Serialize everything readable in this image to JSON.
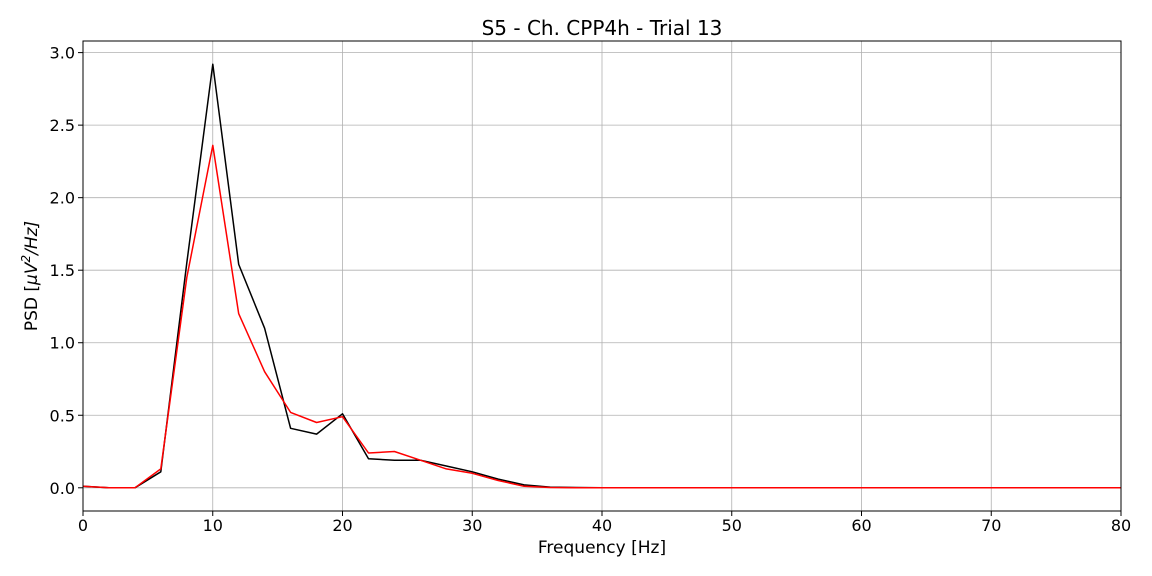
{
  "chart_data": {
    "type": "line",
    "title": "S5 - Ch. CPP4h - Trial 13",
    "xlabel": "Frequency [Hz]",
    "ylabel_prefix": "PSD [",
    "ylabel_mu": "μV",
    "ylabel_exp": "2",
    "ylabel_suffix": "/Hz]",
    "xlim": [
      0,
      80
    ],
    "ylim": [
      -0.16,
      3.08
    ],
    "xticks": [
      0,
      10,
      20,
      30,
      40,
      50,
      60,
      70,
      80
    ],
    "xtick_labels": [
      "0",
      "10",
      "20",
      "30",
      "40",
      "50",
      "60",
      "70",
      "80"
    ],
    "yticks": [
      0.0,
      0.5,
      1.0,
      1.5,
      2.0,
      2.5,
      3.0
    ],
    "ytick_labels": [
      "0.0",
      "0.5",
      "1.0",
      "1.5",
      "2.0",
      "2.5",
      "3.0"
    ],
    "grid": true,
    "x": [
      0,
      2,
      4,
      6,
      8,
      10,
      12,
      14,
      16,
      18,
      20,
      22,
      24,
      26,
      28,
      30,
      32,
      34,
      36,
      38,
      40,
      50,
      60,
      70,
      80
    ],
    "series": [
      {
        "color": "#000000",
        "values": [
          0.01,
          0.0,
          0.0,
          0.11,
          1.55,
          2.92,
          1.54,
          1.1,
          0.41,
          0.37,
          0.51,
          0.2,
          0.19,
          0.19,
          0.15,
          0.11,
          0.06,
          0.02,
          0.005,
          0.002,
          0.0,
          0.0,
          0.0,
          0.0,
          0.0
        ]
      },
      {
        "color": "#ff0000",
        "values": [
          0.01,
          0.0,
          0.0,
          0.13,
          1.45,
          2.36,
          1.2,
          0.8,
          0.52,
          0.45,
          0.49,
          0.24,
          0.25,
          0.19,
          0.13,
          0.1,
          0.05,
          0.01,
          0.002,
          0.0,
          0.0,
          0.0,
          0.0,
          0.0,
          0.0
        ]
      }
    ]
  }
}
